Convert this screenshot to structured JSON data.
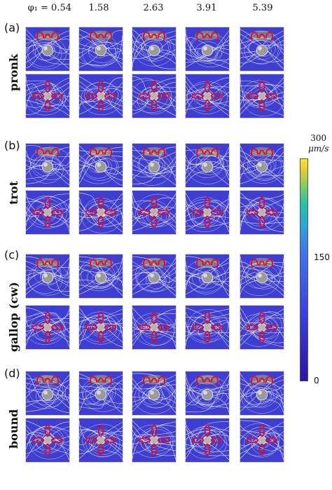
{
  "column_headers": [
    "φ₁ = 0.54",
    "1.58",
    "2.63",
    "3.91",
    "5.39"
  ],
  "panels": [
    {
      "label": "(a)",
      "row_label": "pronk"
    },
    {
      "label": "(b)",
      "row_label": "trot"
    },
    {
      "label": "(c)",
      "row_label": "gallop (cw)"
    },
    {
      "label": "(d)",
      "row_label": "bound"
    }
  ],
  "colorbar": {
    "max_label": "300",
    "unit_label": "μm/s",
    "mid_label": "150",
    "min_label": "0"
  },
  "colors": {
    "background": "#3e3fd2",
    "streamline": "#ffffff",
    "arm": "#d8102b",
    "high_speed": "#fbe52b"
  }
}
